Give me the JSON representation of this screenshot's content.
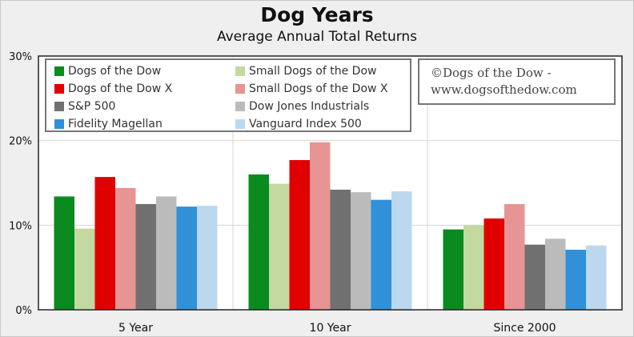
{
  "chart_data": {
    "type": "bar",
    "title": "Dog Years",
    "subtitle": "Average Annual Total Returns",
    "categories": [
      "5 Year",
      "10 Year",
      "Since 2000"
    ],
    "ylim": [
      0,
      30
    ],
    "yticks": [
      0,
      10,
      20,
      30
    ],
    "ytick_labels": [
      "0%",
      "10%",
      "20%",
      "30%"
    ],
    "grid": true,
    "legend_position": "top-left",
    "series": [
      {
        "name": "Dogs of the Dow",
        "color": "#0a8a1f",
        "values": [
          13.4,
          16.0,
          9.5
        ]
      },
      {
        "name": "Small Dogs of the Dow",
        "color": "#c3d9a0",
        "values": [
          9.6,
          14.9,
          10.0
        ]
      },
      {
        "name": "Dogs of the Dow X",
        "color": "#e00000",
        "values": [
          15.7,
          17.7,
          10.8
        ]
      },
      {
        "name": "Small Dogs of the Dow X",
        "color": "#e69494",
        "values": [
          14.4,
          19.8,
          12.5
        ]
      },
      {
        "name": "S&P 500",
        "color": "#707070",
        "values": [
          12.5,
          14.2,
          7.7
        ]
      },
      {
        "name": "Dow Jones Industrials",
        "color": "#bbbbbb",
        "values": [
          13.4,
          13.9,
          8.4
        ]
      },
      {
        "name": "Fidelity Magellan",
        "color": "#3090d8",
        "values": [
          12.2,
          13.0,
          7.1
        ]
      },
      {
        "name": "Vanguard Index 500",
        "color": "#bcd8ef",
        "values": [
          12.3,
          14.0,
          7.6
        ]
      }
    ]
  },
  "copyright": {
    "line1": "©Dogs of the Dow -",
    "line2": "www.dogsofthedow.com"
  }
}
